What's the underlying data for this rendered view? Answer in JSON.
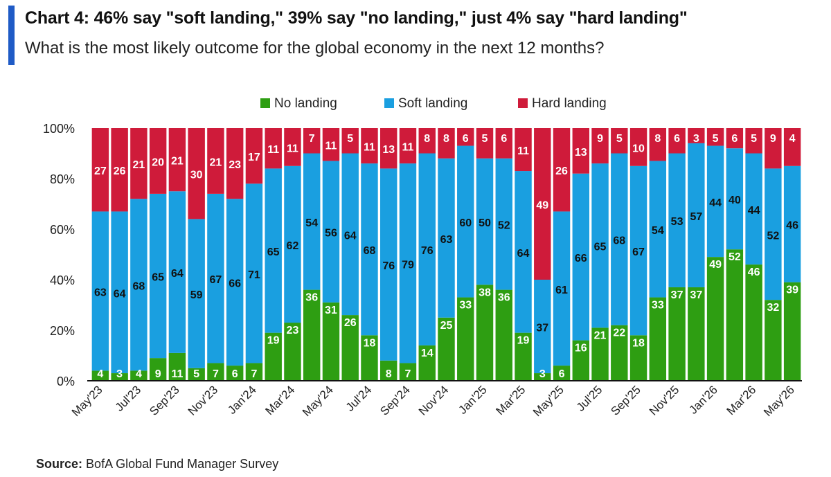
{
  "header": {
    "title": "Chart 4: 46% say \"soft landing,\" 39% say \"no landing,\" just 4% say \"hard landing\"",
    "subtitle": "What is the most likely outcome for the global economy in the next 12 months?"
  },
  "footer": {
    "source_label": "Source:",
    "source_text": "BofA Global Fund Manager Survey"
  },
  "colors": {
    "no_landing": "#2e9e12",
    "soft_landing": "#1a9fe0",
    "hard_landing": "#cf1b3a",
    "accent": "#1f5bc6"
  },
  "chart_data": {
    "type": "bar",
    "stacked": true,
    "title": "",
    "xlabel": "",
    "ylabel": "",
    "ylim": [
      0,
      100
    ],
    "y_ticks": [
      "0%",
      "20%",
      "40%",
      "60%",
      "80%",
      "100%"
    ],
    "legend": {
      "placement": "top-center",
      "entries": [
        "No landing",
        "Soft landing",
        "Hard landing"
      ]
    },
    "categories": [
      "May'23",
      "Jun'23",
      "Jul'23",
      "Aug'23",
      "Sep'23",
      "Oct'23",
      "Nov'23",
      "Dec'23",
      "Jan'24",
      "Feb'24",
      "Mar'24",
      "Apr'24",
      "May'24",
      "Jun'24",
      "Jul'24",
      "Aug'24",
      "Sep'24",
      "Oct'24",
      "Nov'24",
      "Dec'24",
      "Jan'25",
      "Feb'25",
      "Mar'25",
      "Apr'25",
      "May'25",
      "Jun'25",
      "Jul'25",
      "Aug'25",
      "Sep'25",
      "Oct'25",
      "Nov'25",
      "Dec'25",
      "Jan'26",
      "Feb'26",
      "Mar'26",
      "Apr'26",
      "May'26"
    ],
    "tick_labels": [
      "May'23",
      "Jul'23",
      "Sep'23",
      "Nov'23",
      "Jan'24",
      "Mar'24",
      "May'24",
      "Jul'24",
      "Sep'24",
      "Nov'24",
      "Jan'25",
      "Mar'25",
      "May'25",
      "Jul'25",
      "Sep'25",
      "Nov'25",
      "Jan'26",
      "Mar'26",
      "May'26"
    ],
    "series": [
      {
        "name": "No landing",
        "values": [
          4,
          3,
          4,
          9,
          11,
          5,
          7,
          6,
          7,
          19,
          23,
          36,
          31,
          26,
          18,
          8,
          7,
          14,
          25,
          33,
          38,
          36,
          19,
          3,
          6,
          16,
          21,
          22,
          18,
          33,
          37,
          37,
          49,
          52,
          46,
          32,
          39
        ]
      },
      {
        "name": "Soft landing",
        "values": [
          63,
          64,
          68,
          65,
          64,
          59,
          67,
          66,
          71,
          65,
          62,
          54,
          56,
          64,
          68,
          76,
          79,
          76,
          63,
          60,
          50,
          52,
          64,
          37,
          61,
          66,
          65,
          68,
          67,
          54,
          53,
          57,
          44,
          40,
          44,
          52,
          46
        ]
      },
      {
        "name": "Hard landing",
        "values": [
          27,
          26,
          21,
          20,
          21,
          30,
          21,
          23,
          17,
          11,
          11,
          7,
          11,
          5,
          11,
          13,
          11,
          8,
          8,
          6,
          5,
          6,
          11,
          49,
          26,
          13,
          9,
          5,
          10,
          8,
          6,
          3,
          5,
          6,
          5,
          9,
          4
        ]
      }
    ]
  }
}
